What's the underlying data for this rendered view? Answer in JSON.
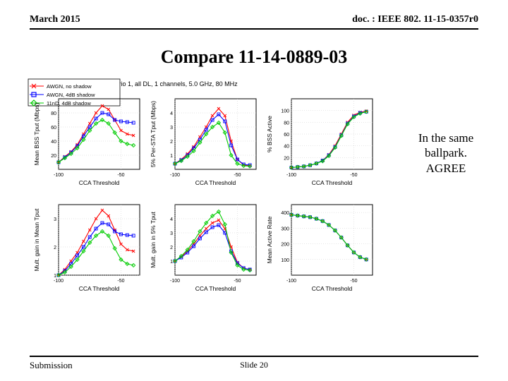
{
  "header": {
    "date": "March 2015",
    "doc": "doc. : IEEE 802. 11-15-0357r0"
  },
  "title": "Compare 11-14-0889-03",
  "annotation": {
    "line1": "In the same",
    "line2": "ballpark.",
    "line3": "AGREE"
  },
  "footer": {
    "left": "Submission",
    "center": "Slide 20"
  },
  "figure": {
    "caption": "Scenario 1, all DL, 1 channels, 5.0 GHz, 80 MHz",
    "colors": {
      "series_a": "#ff0000",
      "series_b": "#0000ff",
      "series_c": "#00cc00",
      "axis": "#000000",
      "grid": "#cccccc",
      "bg": "#ffffff",
      "legend_border": "#000000"
    },
    "legend": {
      "items": [
        {
          "label": "AWGN, no shadow",
          "color": "#ff0000",
          "marker": "x"
        },
        {
          "label": "AWGN, 4dB shadow",
          "color": "#0000ff",
          "marker": "square"
        },
        {
          "label": "11nD, 4dB shadow",
          "color": "#00cc00",
          "marker": "diamond"
        }
      ]
    },
    "xaxis_label": "CCA Threshold",
    "xticks": [
      -100,
      -50
    ],
    "panels": [
      {
        "ylabel": "Mean BSS Tput (Mbps)",
        "ylim": [
          0,
          100
        ],
        "yticks": [
          20,
          40,
          60,
          80
        ],
        "series": {
          "a": [
            [
              -100,
              10
            ],
            [
              -95,
              18
            ],
            [
              -90,
              25
            ],
            [
              -85,
              35
            ],
            [
              -80,
              50
            ],
            [
              -75,
              65
            ],
            [
              -70,
              80
            ],
            [
              -65,
              90
            ],
            [
              -60,
              85
            ],
            [
              -55,
              70
            ],
            [
              -50,
              55
            ],
            [
              -45,
              50
            ],
            [
              -40,
              48
            ]
          ],
          "b": [
            [
              -100,
              10
            ],
            [
              -95,
              17
            ],
            [
              -90,
              24
            ],
            [
              -85,
              33
            ],
            [
              -80,
              47
            ],
            [
              -75,
              60
            ],
            [
              -70,
              72
            ],
            [
              -65,
              80
            ],
            [
              -60,
              78
            ],
            [
              -55,
              70
            ],
            [
              -50,
              68
            ],
            [
              -45,
              67
            ],
            [
              -40,
              66
            ]
          ],
          "c": [
            [
              -100,
              10
            ],
            [
              -95,
              16
            ],
            [
              -90,
              22
            ],
            [
              -85,
              30
            ],
            [
              -80,
              42
            ],
            [
              -75,
              55
            ],
            [
              -70,
              65
            ],
            [
              -65,
              70
            ],
            [
              -60,
              65
            ],
            [
              -55,
              52
            ],
            [
              -50,
              40
            ],
            [
              -45,
              36
            ],
            [
              -40,
              34
            ]
          ]
        }
      },
      {
        "ylabel": "5% Per-STA Tput (Mbps)",
        "ylim": [
          0,
          5
        ],
        "yticks": [
          1,
          2,
          3,
          4
        ],
        "series": {
          "a": [
            [
              -100,
              0.4
            ],
            [
              -95,
              0.7
            ],
            [
              -90,
              1.1
            ],
            [
              -85,
              1.6
            ],
            [
              -80,
              2.3
            ],
            [
              -75,
              3.0
            ],
            [
              -70,
              3.8
            ],
            [
              -65,
              4.3
            ],
            [
              -60,
              3.8
            ],
            [
              -55,
              2.0
            ],
            [
              -50,
              0.7
            ],
            [
              -45,
              0.3
            ],
            [
              -40,
              0.25
            ]
          ],
          "b": [
            [
              -100,
              0.4
            ],
            [
              -95,
              0.65
            ],
            [
              -90,
              1.0
            ],
            [
              -85,
              1.5
            ],
            [
              -80,
              2.1
            ],
            [
              -75,
              2.8
            ],
            [
              -70,
              3.5
            ],
            [
              -65,
              3.9
            ],
            [
              -60,
              3.4
            ],
            [
              -55,
              1.7
            ],
            [
              -50,
              0.7
            ],
            [
              -45,
              0.35
            ],
            [
              -40,
              0.3
            ]
          ],
          "c": [
            [
              -100,
              0.4
            ],
            [
              -95,
              0.6
            ],
            [
              -90,
              0.9
            ],
            [
              -85,
              1.3
            ],
            [
              -80,
              1.9
            ],
            [
              -75,
              2.5
            ],
            [
              -70,
              3.0
            ],
            [
              -65,
              3.3
            ],
            [
              -60,
              2.6
            ],
            [
              -55,
              1.0
            ],
            [
              -50,
              0.4
            ],
            [
              -45,
              0.25
            ],
            [
              -40,
              0.22
            ]
          ]
        }
      },
      {
        "ylabel": "% BSS Active",
        "ylim": [
          0,
          120
        ],
        "yticks": [
          20,
          40,
          60,
          80,
          100
        ],
        "series": {
          "a": [
            [
              -100,
              3
            ],
            [
              -95,
              4
            ],
            [
              -90,
              5
            ],
            [
              -85,
              7
            ],
            [
              -80,
              10
            ],
            [
              -75,
              15
            ],
            [
              -70,
              25
            ],
            [
              -65,
              40
            ],
            [
              -60,
              60
            ],
            [
              -55,
              80
            ],
            [
              -50,
              92
            ],
            [
              -45,
              97
            ],
            [
              -40,
              99
            ]
          ],
          "b": [
            [
              -100,
              3
            ],
            [
              -95,
              4
            ],
            [
              -90,
              5
            ],
            [
              -85,
              7
            ],
            [
              -80,
              10
            ],
            [
              -75,
              15
            ],
            [
              -70,
              24
            ],
            [
              -65,
              38
            ],
            [
              -60,
              58
            ],
            [
              -55,
              78
            ],
            [
              -50,
              90
            ],
            [
              -45,
              96
            ],
            [
              -40,
              98
            ]
          ],
          "c": [
            [
              -100,
              3
            ],
            [
              -95,
              4
            ],
            [
              -90,
              5
            ],
            [
              -85,
              7
            ],
            [
              -80,
              10
            ],
            [
              -75,
              14
            ],
            [
              -70,
              23
            ],
            [
              -65,
              37
            ],
            [
              -60,
              57
            ],
            [
              -55,
              77
            ],
            [
              -50,
              89
            ],
            [
              -45,
              95
            ],
            [
              -40,
              98
            ]
          ]
        }
      },
      {
        "ylabel": "Mult. gain in Mean Tput",
        "ylim": [
          1,
          3.5
        ],
        "yticks": [
          1,
          2,
          3
        ],
        "series": {
          "a": [
            [
              -100,
              1.0
            ],
            [
              -95,
              1.2
            ],
            [
              -90,
              1.5
            ],
            [
              -85,
              1.8
            ],
            [
              -80,
              2.2
            ],
            [
              -75,
              2.6
            ],
            [
              -70,
              3.0
            ],
            [
              -65,
              3.3
            ],
            [
              -60,
              3.1
            ],
            [
              -55,
              2.6
            ],
            [
              -50,
              2.1
            ],
            [
              -45,
              1.9
            ],
            [
              -40,
              1.85
            ]
          ],
          "b": [
            [
              -100,
              1.0
            ],
            [
              -95,
              1.15
            ],
            [
              -90,
              1.4
            ],
            [
              -85,
              1.7
            ],
            [
              -80,
              2.0
            ],
            [
              -75,
              2.35
            ],
            [
              -70,
              2.65
            ],
            [
              -65,
              2.85
            ],
            [
              -60,
              2.8
            ],
            [
              -55,
              2.55
            ],
            [
              -50,
              2.45
            ],
            [
              -45,
              2.42
            ],
            [
              -40,
              2.4
            ]
          ],
          "c": [
            [
              -100,
              1.0
            ],
            [
              -95,
              1.1
            ],
            [
              -90,
              1.3
            ],
            [
              -85,
              1.55
            ],
            [
              -80,
              1.85
            ],
            [
              -75,
              2.15
            ],
            [
              -70,
              2.4
            ],
            [
              -65,
              2.55
            ],
            [
              -60,
              2.4
            ],
            [
              -55,
              1.95
            ],
            [
              -50,
              1.55
            ],
            [
              -45,
              1.4
            ],
            [
              -40,
              1.35
            ]
          ]
        }
      },
      {
        "ylabel": "Mult. gain in 5% Tput",
        "ylim": [
          0,
          5
        ],
        "yticks": [
          1,
          2,
          3,
          4
        ],
        "series": {
          "a": [
            [
              -100,
              1.0
            ],
            [
              -95,
              1.3
            ],
            [
              -90,
              1.7
            ],
            [
              -85,
              2.2
            ],
            [
              -80,
              2.8
            ],
            [
              -75,
              3.3
            ],
            [
              -70,
              3.7
            ],
            [
              -65,
              3.9
            ],
            [
              -60,
              3.3
            ],
            [
              -55,
              2.0
            ],
            [
              -50,
              0.9
            ],
            [
              -45,
              0.5
            ],
            [
              -40,
              0.4
            ]
          ],
          "b": [
            [
              -100,
              1.0
            ],
            [
              -95,
              1.25
            ],
            [
              -90,
              1.6
            ],
            [
              -85,
              2.05
            ],
            [
              -80,
              2.6
            ],
            [
              -75,
              3.05
            ],
            [
              -70,
              3.4
            ],
            [
              -65,
              3.55
            ],
            [
              -60,
              3.0
            ],
            [
              -55,
              1.7
            ],
            [
              -50,
              0.85
            ],
            [
              -45,
              0.5
            ],
            [
              -40,
              0.4
            ]
          ],
          "c": [
            [
              -100,
              1.0
            ],
            [
              -95,
              1.35
            ],
            [
              -90,
              1.8
            ],
            [
              -85,
              2.4
            ],
            [
              -80,
              3.1
            ],
            [
              -75,
              3.7
            ],
            [
              -70,
              4.2
            ],
            [
              -65,
              4.5
            ],
            [
              -60,
              3.6
            ],
            [
              -55,
              1.6
            ],
            [
              -50,
              0.7
            ],
            [
              -45,
              0.4
            ],
            [
              -40,
              0.35
            ]
          ]
        }
      },
      {
        "ylabel": "Mean Active Rate",
        "ylim": [
          0,
          450
        ],
        "yticks": [
          100,
          200,
          300,
          400
        ],
        "series": {
          "a": [
            [
              -100,
              385
            ],
            [
              -95,
              380
            ],
            [
              -90,
              375
            ],
            [
              -85,
              370
            ],
            [
              -80,
              360
            ],
            [
              -75,
              345
            ],
            [
              -70,
              320
            ],
            [
              -65,
              285
            ],
            [
              -60,
              240
            ],
            [
              -55,
              190
            ],
            [
              -50,
              145
            ],
            [
              -45,
              115
            ],
            [
              -40,
              100
            ]
          ],
          "b": [
            [
              -100,
              385
            ],
            [
              -95,
              380
            ],
            [
              -90,
              375
            ],
            [
              -85,
              370
            ],
            [
              -80,
              360
            ],
            [
              -75,
              345
            ],
            [
              -70,
              320
            ],
            [
              -65,
              285
            ],
            [
              -60,
              240
            ],
            [
              -55,
              190
            ],
            [
              -50,
              145
            ],
            [
              -45,
              115
            ],
            [
              -40,
              100
            ]
          ],
          "c": [
            [
              -100,
              385
            ],
            [
              -95,
              380
            ],
            [
              -90,
              375
            ],
            [
              -85,
              370
            ],
            [
              -80,
              360
            ],
            [
              -75,
              345
            ],
            [
              -70,
              320
            ],
            [
              -65,
              285
            ],
            [
              -60,
              240
            ],
            [
              -55,
              190
            ],
            [
              -50,
              145
            ],
            [
              -45,
              115
            ],
            [
              -40,
              100
            ]
          ]
        }
      }
    ]
  }
}
